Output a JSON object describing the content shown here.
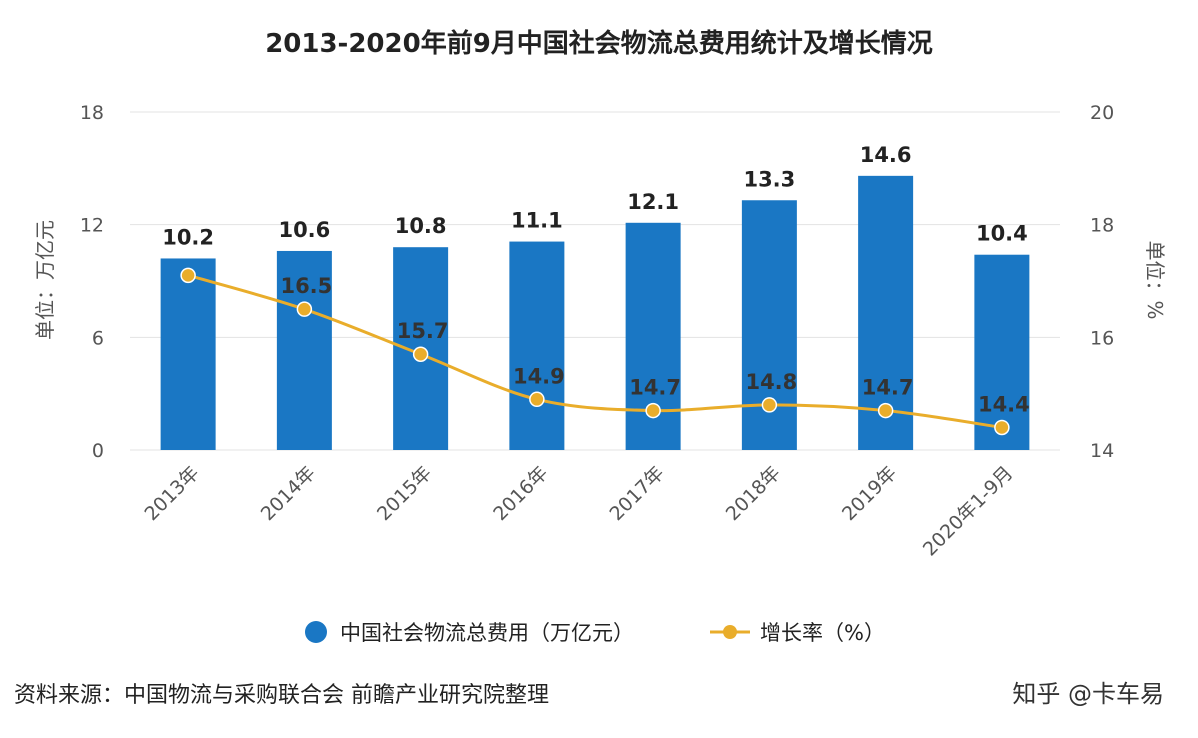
{
  "chart_data": {
    "type": "bar",
    "title": "2013-2020年前9月中国社会物流总费用统计及增长情况",
    "categories": [
      "2013年",
      "2014年",
      "2015年",
      "2016年",
      "2017年",
      "2018年",
      "2019年",
      "2020年1-9月"
    ],
    "series": [
      {
        "name": "中国社会物流总费用（万亿元）",
        "type": "bar",
        "axis": "left",
        "values": [
          10.2,
          10.6,
          10.8,
          11.1,
          12.1,
          13.3,
          14.6,
          10.4
        ],
        "labels": [
          "10.2",
          "10.6",
          "10.8",
          "11.1",
          "12.1",
          "13.3",
          "14.6",
          "10.4"
        ],
        "color": "#1a77c4"
      },
      {
        "name": "增长率（%）",
        "type": "line",
        "axis": "right",
        "values": [
          17.1,
          16.5,
          15.7,
          14.9,
          14.7,
          14.8,
          14.7,
          14.4
        ],
        "labels": [
          "",
          "16.5",
          "15.7",
          "14.9",
          "14.7",
          "14.8",
          "14.7",
          "14.4"
        ],
        "color": "#e9ad2b"
      }
    ],
    "ylabel": "单位：万亿元",
    "y2label": "单位：%",
    "ylim": [
      0,
      18
    ],
    "yticks": [
      "0",
      "6",
      "12",
      "18"
    ],
    "y2lim": [
      14,
      20
    ],
    "y2ticks": [
      "14",
      "16",
      "18",
      "20"
    ],
    "grid": true,
    "legend_position": "bottom"
  },
  "source": "资料来源：中国物流与采购联合会 前瞻产业研究院整理",
  "watermark": "知乎 @卡车易"
}
